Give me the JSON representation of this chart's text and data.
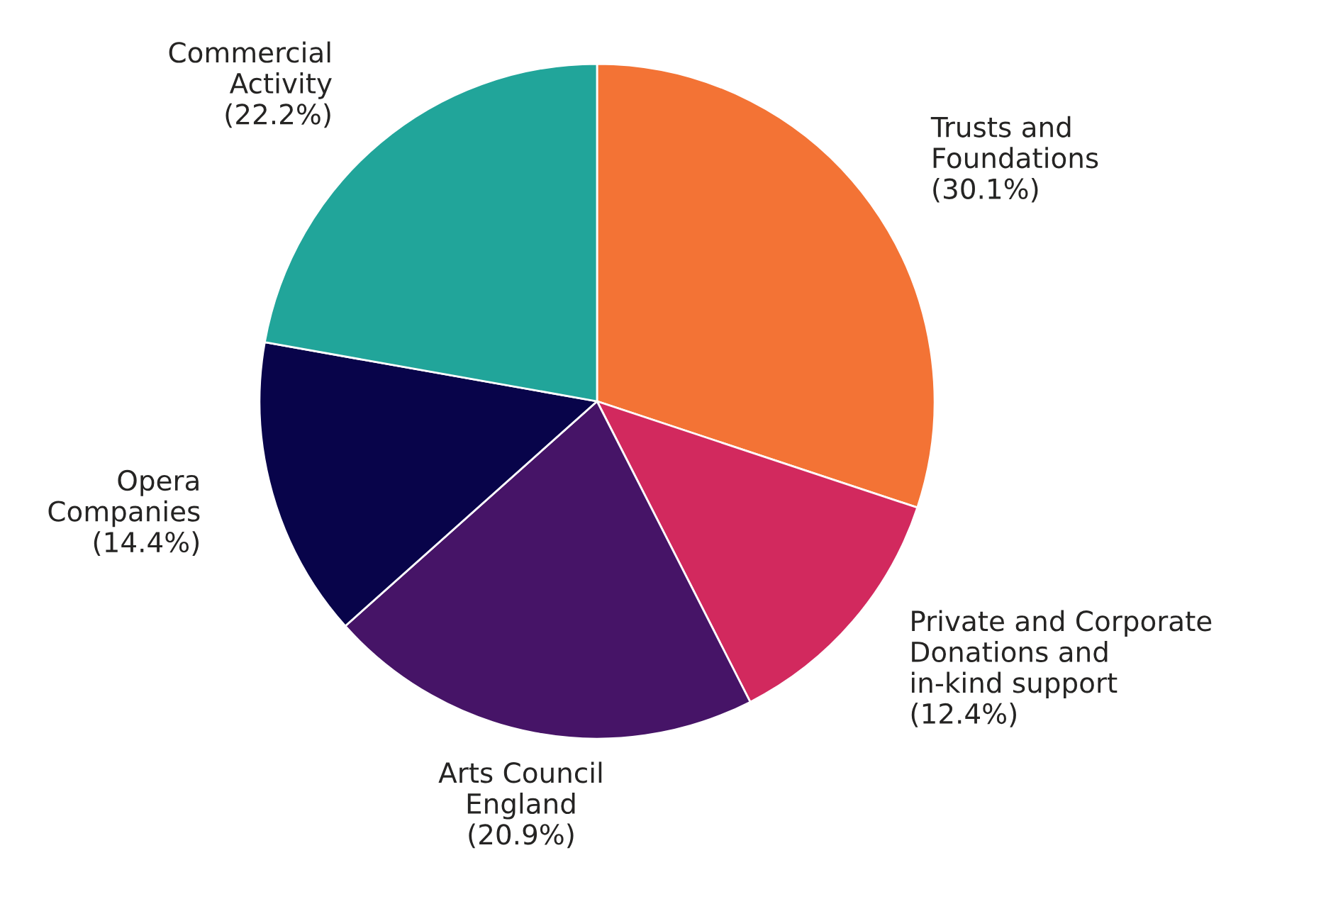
{
  "chart_data": {
    "type": "pie",
    "categories": [
      "Trusts and\nFoundations",
      "Private and Corporate\nDonations and\nin-kind support",
      "Arts Council\nEngland",
      "Opera\nCompanies",
      "Commercial\nActivity"
    ],
    "values": [
      30.1,
      12.4,
      20.9,
      14.4,
      22.2
    ],
    "value_labels": [
      "(30.1%)",
      "(12.4%)",
      "(20.9%)",
      "(14.4%)",
      "(22.2%)"
    ],
    "colors": [
      "#f37335",
      "#d2295e",
      "#461467",
      "#08044a",
      "#21a59a"
    ]
  }
}
